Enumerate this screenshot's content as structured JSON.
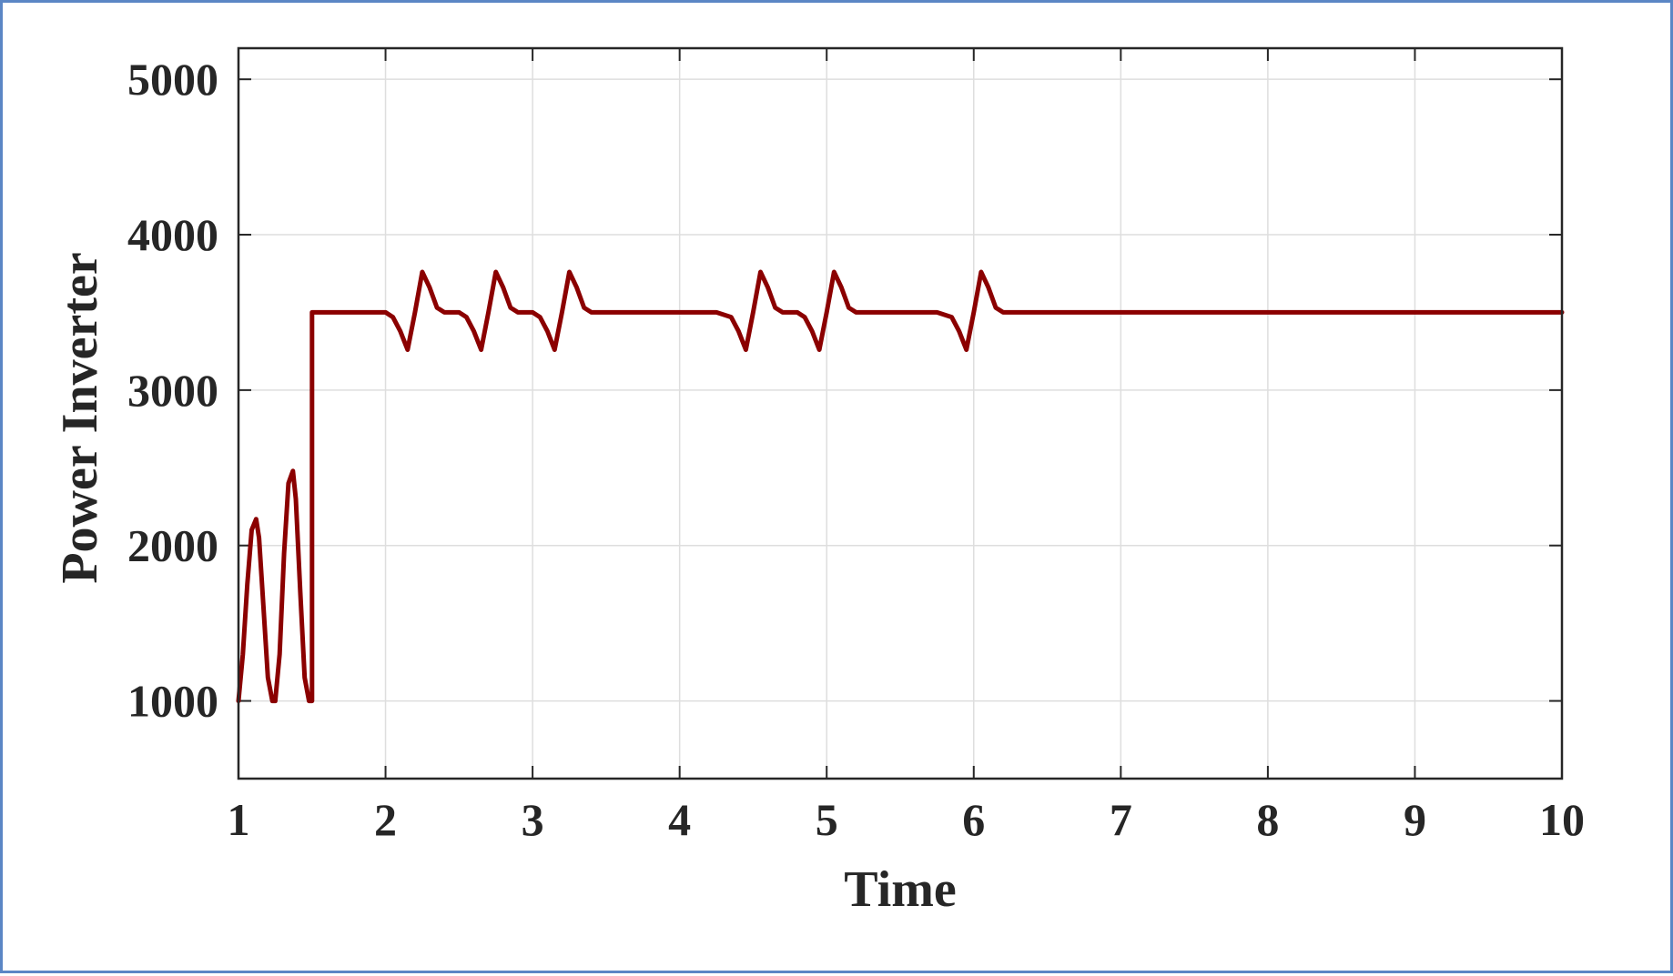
{
  "chart_data": {
    "type": "line",
    "title": "",
    "xlabel": "Time",
    "ylabel": "Power Inverter",
    "xlim": [
      1,
      10
    ],
    "ylim": [
      500,
      5200
    ],
    "xticks": [
      1,
      2,
      3,
      4,
      5,
      6,
      7,
      8,
      9,
      10
    ],
    "yticks": [
      1000,
      2000,
      3000,
      4000,
      5000
    ],
    "x_tick_labels": [
      "1",
      "2",
      "3",
      "4",
      "5",
      "6",
      "7",
      "8",
      "9",
      "10"
    ],
    "y_tick_labels": [
      "1000",
      "2000",
      "3000",
      "4000",
      "5000"
    ],
    "grid": true,
    "series": [
      {
        "color": "#8b0000",
        "x": [
          1.0,
          1.03,
          1.06,
          1.09,
          1.12,
          1.14,
          1.17,
          1.2,
          1.23,
          1.25,
          1.28,
          1.31,
          1.34,
          1.37,
          1.39,
          1.42,
          1.45,
          1.48,
          1.5,
          1.5,
          2.0,
          2.05,
          2.1,
          2.15,
          2.2,
          2.25,
          2.3,
          2.35,
          2.4,
          2.5,
          2.55,
          2.6,
          2.65,
          2.7,
          2.75,
          2.8,
          2.85,
          2.9,
          3.0,
          3.05,
          3.1,
          3.15,
          3.2,
          3.25,
          3.3,
          3.35,
          3.4,
          3.5,
          4.25,
          4.35,
          4.4,
          4.45,
          4.5,
          4.55,
          4.6,
          4.65,
          4.7,
          4.8,
          4.85,
          4.9,
          4.95,
          5.0,
          5.05,
          5.1,
          5.15,
          5.2,
          5.3,
          5.75,
          5.85,
          5.9,
          5.95,
          6.0,
          6.05,
          6.1,
          6.15,
          6.2,
          6.3,
          10.0
        ],
        "y": [
          1000,
          1300,
          1750,
          2100,
          2170,
          2050,
          1600,
          1150,
          1000,
          1000,
          1300,
          1950,
          2400,
          2480,
          2300,
          1700,
          1150,
          1000,
          1000,
          3500,
          3500,
          3470,
          3380,
          3260,
          3500,
          3760,
          3660,
          3530,
          3500,
          3500,
          3470,
          3380,
          3260,
          3500,
          3760,
          3660,
          3530,
          3500,
          3500,
          3470,
          3380,
          3260,
          3500,
          3760,
          3660,
          3530,
          3500,
          3500,
          3500,
          3470,
          3380,
          3260,
          3500,
          3760,
          3660,
          3530,
          3500,
          3500,
          3470,
          3380,
          3260,
          3500,
          3760,
          3660,
          3530,
          3500,
          3500,
          3500,
          3470,
          3380,
          3260,
          3500,
          3760,
          3660,
          3530,
          3500,
          3500,
          3500
        ]
      }
    ]
  }
}
